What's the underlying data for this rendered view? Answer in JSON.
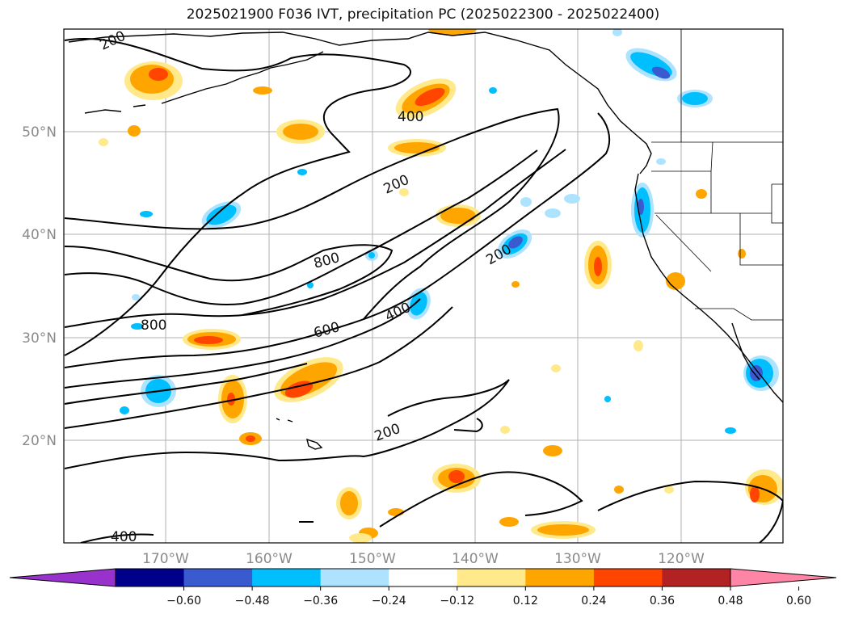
{
  "title": "2025021900 F036 IVT, precipitation PC (2025022300 - 2025022400)",
  "map": {
    "lat_ticks": [
      "50°N",
      "40°N",
      "30°N",
      "20°N"
    ],
    "lon_ticks": [
      "170°W",
      "160°W",
      "150°W",
      "140°W",
      "130°W",
      "120°W"
    ],
    "contour_labels": [
      "200",
      "400",
      "200",
      "800",
      "600",
      "400",
      "200",
      "800",
      "200",
      "400"
    ],
    "contour_color": "#000000",
    "coast_color": "#000000"
  },
  "colorbar": {
    "colors": [
      "#9932CC",
      "#00008B",
      "#3A5BD0",
      "#00BFFF",
      "#ADE3FF",
      "#FFFFFF",
      "#FFE98A",
      "#FFA500",
      "#FF4500",
      "#B22222",
      "#FF85A6"
    ],
    "tick_labels": [
      "−0.60",
      "−0.48",
      "−0.36",
      "−0.24",
      "−0.12",
      "0.12",
      "0.24",
      "0.36",
      "0.48",
      "0.60"
    ]
  }
}
